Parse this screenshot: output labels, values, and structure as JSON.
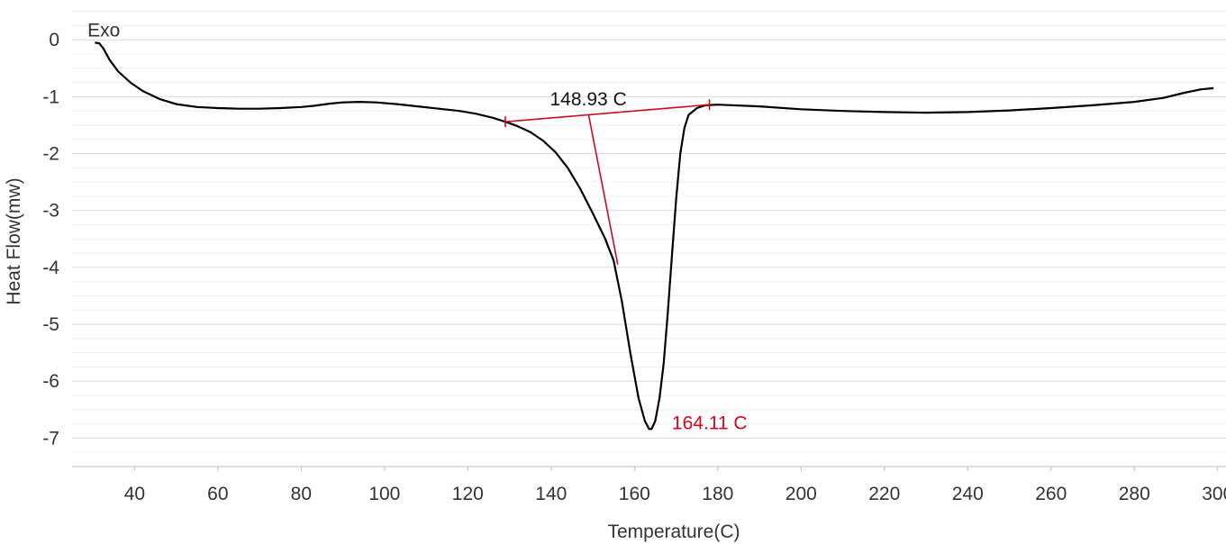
{
  "chart_data": {
    "type": "line",
    "title": "",
    "xlabel": "Temperature(C)",
    "ylabel": "Heat Flow(mw)",
    "xlim": [
      25,
      302
    ],
    "ylim": [
      -7.5,
      0.7
    ],
    "x_ticks": [
      40,
      60,
      80,
      100,
      120,
      140,
      160,
      180,
      200,
      220,
      240,
      260,
      280,
      300
    ],
    "y_ticks": [
      0,
      -1,
      -2,
      -3,
      -4,
      -5,
      -6,
      -7
    ],
    "grid": true,
    "series": [
      {
        "color": "#000000",
        "points": [
          [
            30.5,
            -0.05
          ],
          [
            31.5,
            -0.06
          ],
          [
            32.5,
            -0.15
          ],
          [
            34,
            -0.35
          ],
          [
            36,
            -0.55
          ],
          [
            39,
            -0.75
          ],
          [
            42,
            -0.9
          ],
          [
            46,
            -1.04
          ],
          [
            50,
            -1.13
          ],
          [
            55,
            -1.18
          ],
          [
            60,
            -1.2
          ],
          [
            65,
            -1.21
          ],
          [
            70,
            -1.21
          ],
          [
            75,
            -1.2
          ],
          [
            80,
            -1.18
          ],
          [
            83,
            -1.16
          ],
          [
            87,
            -1.12
          ],
          [
            90,
            -1.1
          ],
          [
            94,
            -1.09
          ],
          [
            98,
            -1.1
          ],
          [
            103,
            -1.13
          ],
          [
            108,
            -1.17
          ],
          [
            113,
            -1.21
          ],
          [
            118,
            -1.25
          ],
          [
            122,
            -1.3
          ],
          [
            126,
            -1.37
          ],
          [
            129,
            -1.44
          ],
          [
            132,
            -1.52
          ],
          [
            135,
            -1.62
          ],
          [
            138,
            -1.77
          ],
          [
            141,
            -1.97
          ],
          [
            144,
            -2.25
          ],
          [
            147,
            -2.62
          ],
          [
            150,
            -3.05
          ],
          [
            153,
            -3.5
          ],
          [
            155,
            -3.88
          ],
          [
            157,
            -4.6
          ],
          [
            159,
            -5.5
          ],
          [
            161,
            -6.3
          ],
          [
            162.5,
            -6.7
          ],
          [
            163.5,
            -6.84
          ],
          [
            164.11,
            -6.84
          ],
          [
            165,
            -6.7
          ],
          [
            166,
            -6.3
          ],
          [
            167,
            -5.7
          ],
          [
            168,
            -4.8
          ],
          [
            169,
            -3.8
          ],
          [
            170,
            -2.8
          ],
          [
            171,
            -2.0
          ],
          [
            172,
            -1.55
          ],
          [
            173,
            -1.32
          ],
          [
            175,
            -1.2
          ],
          [
            177,
            -1.15
          ],
          [
            180,
            -1.14
          ],
          [
            190,
            -1.17
          ],
          [
            200,
            -1.22
          ],
          [
            210,
            -1.25
          ],
          [
            220,
            -1.27
          ],
          [
            230,
            -1.28
          ],
          [
            240,
            -1.27
          ],
          [
            250,
            -1.24
          ],
          [
            260,
            -1.2
          ],
          [
            270,
            -1.15
          ],
          [
            280,
            -1.09
          ],
          [
            287,
            -1.02
          ],
          [
            292,
            -0.93
          ],
          [
            296,
            -0.87
          ],
          [
            299,
            -0.85
          ]
        ]
      }
    ],
    "analysis": {
      "color": "#cc0a1e",
      "baseline": [
        [
          129,
          -1.44
        ],
        [
          178,
          -1.14
        ]
      ],
      "onset_line": [
        [
          149,
          -1.32
        ],
        [
          156,
          -3.95
        ]
      ],
      "onset_label": "148.93 C",
      "onset_label_at": [
        148.93,
        -0.95
      ],
      "peak_label": "164.11 C",
      "peak_label_at": [
        169,
        -6.72
      ],
      "exo_label": "Exo",
      "exo_label_at": [
        30,
        0.15
      ]
    }
  }
}
